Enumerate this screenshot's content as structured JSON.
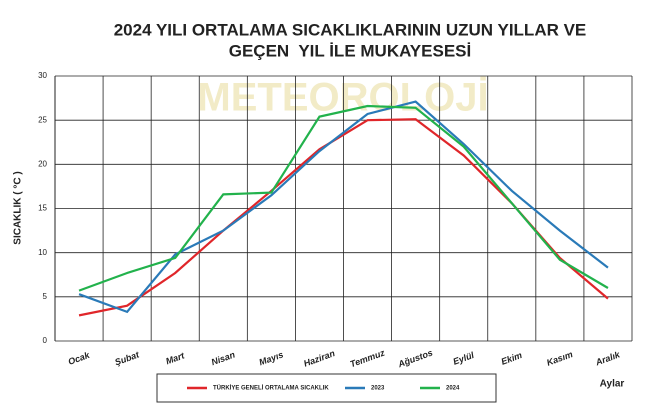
{
  "chart_data": {
    "type": "line",
    "title": [
      "2024 YILI ORTALAMA SICAKLIKLARININ UZUN YILLAR VE",
      "GEÇEN  YIL İLE MUKAYESESİ"
    ],
    "watermark": "METEOROLOJİ",
    "y_label": "SICAKLIK ( °C )",
    "x_label": "Aylar",
    "categories": [
      "Ocak",
      "Şubat",
      "Mart",
      "Nisan",
      "Mayıs",
      "Haziran",
      "Temmuz",
      "Ağustos",
      "Eylül",
      "Ekim",
      "Kasım",
      "Aralık"
    ],
    "series": [
      {
        "name": "TÜRKİYE GENELİ ORTALAMA SICAKLIK",
        "color": "#e0262a",
        "values": [
          2.9,
          4.0,
          7.7,
          12.5,
          17.0,
          21.7,
          25.0,
          25.1,
          21.0,
          15.6,
          9.4,
          4.8
        ]
      },
      {
        "name": "2023",
        "color": "#2a7ab8",
        "values": [
          5.3,
          3.3,
          9.8,
          12.5,
          16.5,
          21.5,
          25.7,
          27.1,
          22.3,
          17.0,
          12.5,
          8.3
        ]
      },
      {
        "name": "2024",
        "color": "#22b24c",
        "values": [
          5.7,
          7.7,
          9.4,
          16.6,
          16.8,
          25.4,
          26.6,
          26.4,
          22.0,
          15.6,
          9.2,
          6.0
        ]
      }
    ],
    "ylim": [
      0,
      30
    ],
    "yticks": [
      0,
      5,
      10,
      15,
      20,
      25,
      30
    ],
    "grid": true
  }
}
